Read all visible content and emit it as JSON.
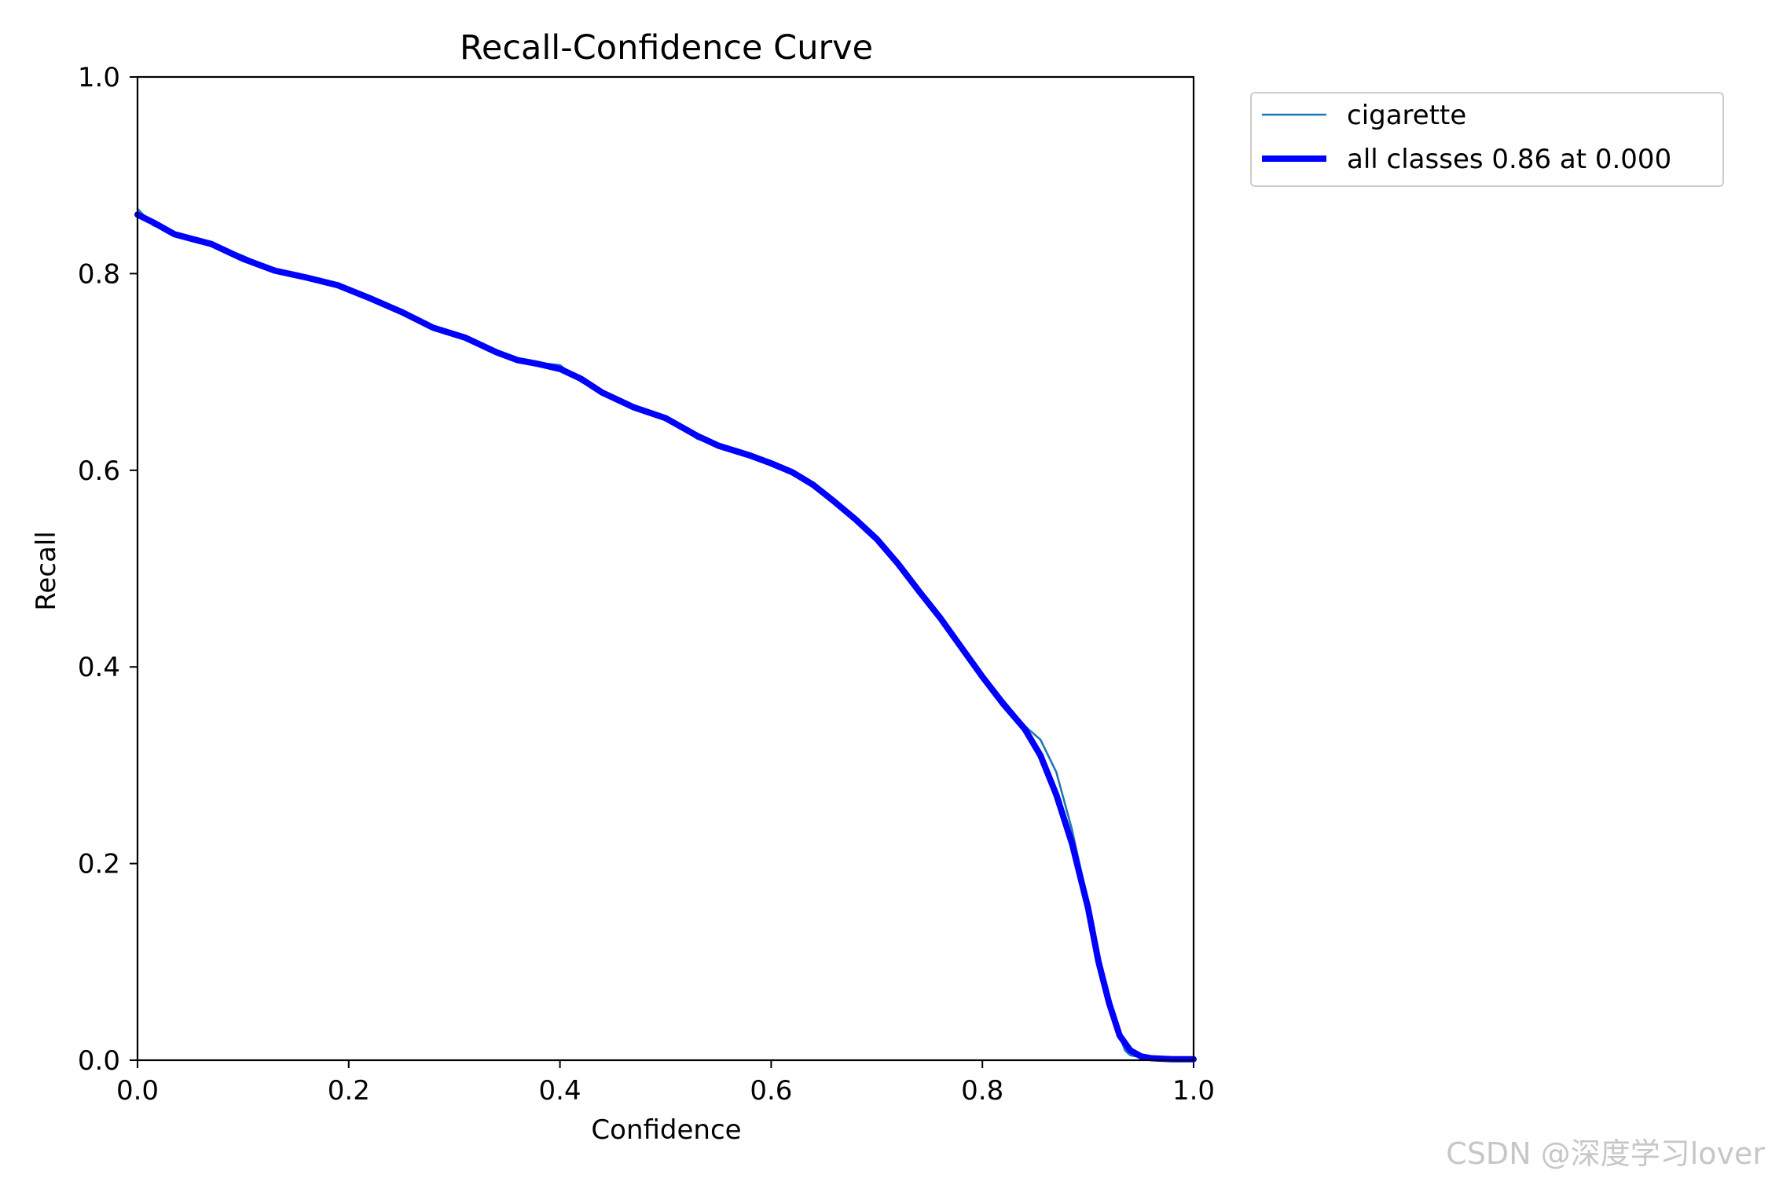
{
  "chart_data": {
    "type": "line",
    "title": "Recall-Confidence Curve",
    "xlabel": "Confidence",
    "ylabel": "Recall",
    "xlim": [
      0,
      1
    ],
    "ylim": [
      0,
      1
    ],
    "xticks": [
      0.0,
      0.2,
      0.4,
      0.6,
      0.8,
      1.0
    ],
    "yticks": [
      0.0,
      0.2,
      0.4,
      0.6,
      0.8,
      1.0
    ],
    "xtick_labels": [
      "0.0",
      "0.2",
      "0.4",
      "0.6",
      "0.8",
      "1.0"
    ],
    "ytick_labels": [
      "0.0",
      "0.2",
      "0.4",
      "0.6",
      "0.8",
      "1.0"
    ],
    "grid": false,
    "legend_position": "outside-top-right",
    "series": [
      {
        "name": "cigarette",
        "color": "#1f77b4",
        "style": "thin",
        "x": [
          0.0,
          0.015,
          0.035,
          0.07,
          0.1,
          0.13,
          0.16,
          0.19,
          0.22,
          0.25,
          0.28,
          0.31,
          0.34,
          0.36,
          0.38,
          0.4,
          0.42,
          0.44,
          0.47,
          0.5,
          0.53,
          0.55,
          0.58,
          0.6,
          0.62,
          0.64,
          0.66,
          0.68,
          0.7,
          0.72,
          0.74,
          0.76,
          0.78,
          0.8,
          0.82,
          0.84,
          0.855,
          0.87,
          0.885,
          0.9,
          0.91,
          0.92,
          0.925,
          0.93,
          0.935,
          0.94,
          0.95,
          0.96,
          0.98,
          1.0
        ],
        "y": [
          0.866,
          0.849,
          0.842,
          0.83,
          0.818,
          0.803,
          0.796,
          0.789,
          0.775,
          0.761,
          0.745,
          0.734,
          0.719,
          0.712,
          0.709,
          0.707,
          0.69,
          0.679,
          0.665,
          0.654,
          0.632,
          0.625,
          0.614,
          0.607,
          0.6,
          0.586,
          0.568,
          0.55,
          0.53,
          0.505,
          0.478,
          0.452,
          0.422,
          0.393,
          0.366,
          0.34,
          0.326,
          0.293,
          0.234,
          0.16,
          0.1,
          0.06,
          0.04,
          0.025,
          0.01,
          0.005,
          0.003,
          0.002,
          0.001,
          0.001
        ]
      },
      {
        "name": "all classes 0.86 at 0.000",
        "color": "#0000ff",
        "style": "thick",
        "x": [
          0.0,
          0.015,
          0.035,
          0.07,
          0.1,
          0.13,
          0.16,
          0.19,
          0.22,
          0.25,
          0.28,
          0.31,
          0.34,
          0.36,
          0.38,
          0.4,
          0.42,
          0.44,
          0.47,
          0.5,
          0.53,
          0.55,
          0.58,
          0.6,
          0.62,
          0.64,
          0.66,
          0.68,
          0.7,
          0.72,
          0.74,
          0.76,
          0.78,
          0.8,
          0.82,
          0.84,
          0.855,
          0.87,
          0.885,
          0.9,
          0.91,
          0.92,
          0.93,
          0.94,
          0.95,
          0.96,
          0.98,
          1.0
        ],
        "y": [
          0.86,
          0.852,
          0.84,
          0.83,
          0.815,
          0.803,
          0.796,
          0.788,
          0.775,
          0.761,
          0.745,
          0.735,
          0.72,
          0.712,
          0.708,
          0.703,
          0.693,
          0.679,
          0.664,
          0.653,
          0.635,
          0.625,
          0.615,
          0.607,
          0.598,
          0.585,
          0.568,
          0.55,
          0.53,
          0.505,
          0.477,
          0.45,
          0.42,
          0.39,
          0.362,
          0.337,
          0.31,
          0.27,
          0.22,
          0.155,
          0.1,
          0.058,
          0.025,
          0.01,
          0.004,
          0.002,
          0.001,
          0.001
        ]
      }
    ]
  },
  "watermark": "CSDN @深度学习lover"
}
